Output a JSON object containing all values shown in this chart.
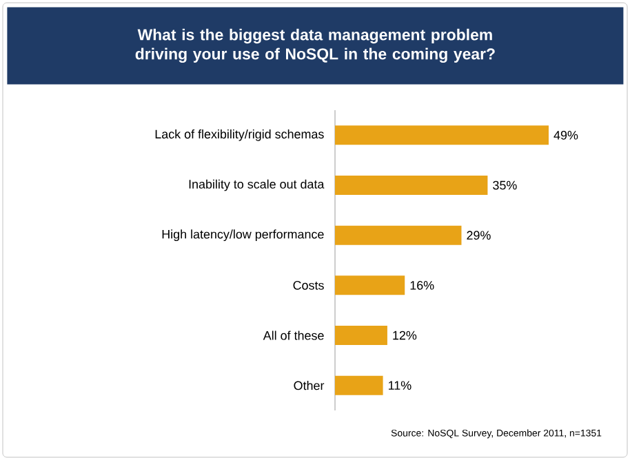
{
  "chart_data": {
    "type": "bar",
    "orientation": "horizontal",
    "title": "What is the biggest data management problem driving your use of NoSQL in the coming year?",
    "categories": [
      "Lack of flexibility/rigid schemas",
      "Inability to scale out data",
      "High latency/low performance",
      "Costs",
      "All of these",
      "Other"
    ],
    "values": [
      49,
      35,
      29,
      16,
      12,
      11
    ],
    "value_labels": [
      "49%",
      "35%",
      "29%",
      "16%",
      "12%",
      "11%"
    ],
    "color": "#e8a317",
    "annotations": [
      "Source: NoSQL Survey, December 2011, n=1351"
    ]
  }
}
